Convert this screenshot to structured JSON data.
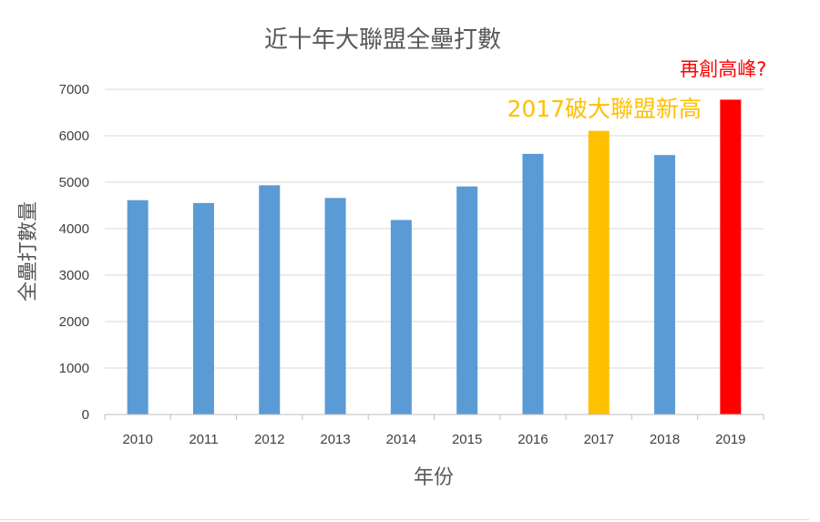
{
  "chart_data": {
    "type": "bar",
    "title": "近十年大聯盟全壘打數",
    "xlabel": "年份",
    "ylabel": "全壘打數量",
    "categories": [
      "2010",
      "2011",
      "2012",
      "2013",
      "2014",
      "2015",
      "2016",
      "2017",
      "2018",
      "2019"
    ],
    "values": [
      4613,
      4552,
      4934,
      4661,
      4186,
      4909,
      5610,
      6105,
      5585,
      6776
    ],
    "bar_colors": [
      "#5b9bd5",
      "#5b9bd5",
      "#5b9bd5",
      "#5b9bd5",
      "#5b9bd5",
      "#5b9bd5",
      "#5b9bd5",
      "#ffc000",
      "#5b9bd5",
      "#ff0000"
    ],
    "ylim": [
      0,
      7000
    ],
    "yticks": [
      0,
      1000,
      2000,
      3000,
      4000,
      5000,
      6000,
      7000
    ],
    "grid": true,
    "annotations": [
      {
        "text": "2017破大聯盟新高",
        "category": "2017",
        "color": "#ffc000"
      },
      {
        "text": "再創高峰?",
        "category": "2019",
        "color": "#ff0000"
      }
    ]
  }
}
